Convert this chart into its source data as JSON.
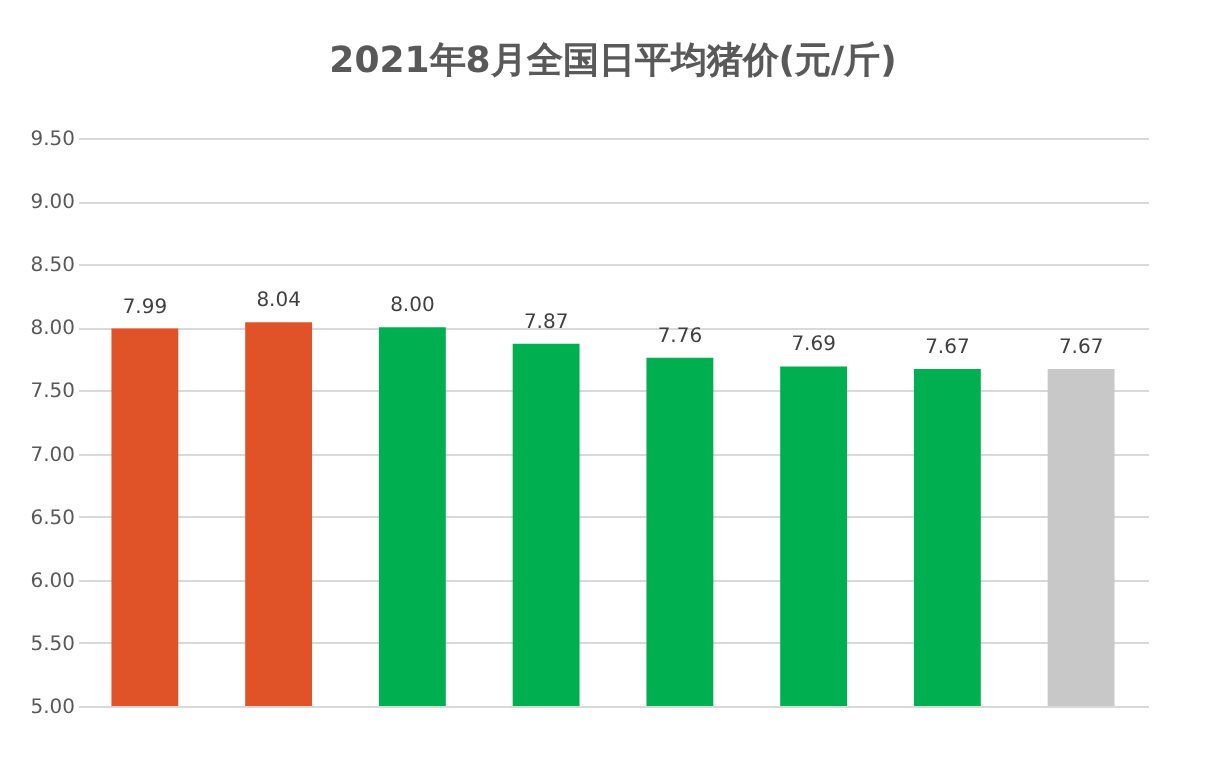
{
  "chart_data": {
    "type": "bar",
    "title": "2021年8月全国日平均猪价(元/斤)",
    "categories": [
      null,
      null,
      null,
      null,
      null,
      null,
      null,
      null
    ],
    "values": [
      7.99,
      8.04,
      8.0,
      7.87,
      7.76,
      7.69,
      7.67,
      7.67
    ],
    "colors": [
      "#e05328",
      "#e05328",
      "#00b050",
      "#00b050",
      "#00b050",
      "#00b050",
      "#00b050",
      "#c8c8c8"
    ],
    "value_labels": [
      "7.99",
      "8.04",
      "8.00",
      "7.87",
      "7.76",
      "7.69",
      "7.67",
      "7.67"
    ],
    "ylim": [
      5,
      9.5
    ],
    "yticks": [
      {
        "value": 5,
        "label": "5.00"
      },
      {
        "value": 5.5,
        "label": "5.50"
      },
      {
        "value": 6,
        "label": "6.00"
      },
      {
        "value": 6.5,
        "label": "6.50"
      },
      {
        "value": 7,
        "label": "7.00"
      },
      {
        "value": 7.5,
        "label": "7.50"
      },
      {
        "value": 8,
        "label": "8.00"
      },
      {
        "value": 8.5,
        "label": "8.50"
      },
      {
        "value": 9,
        "label": "9.00"
      },
      {
        "value": 9.5,
        "label": "9.50"
      }
    ],
    "grid": "y",
    "tick_labels": "y"
  }
}
